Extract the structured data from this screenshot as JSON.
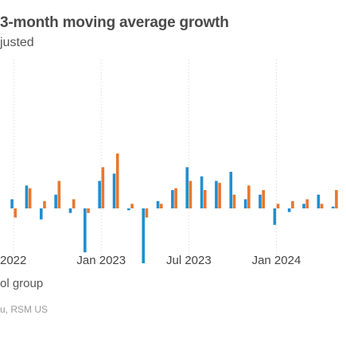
{
  "title": "3-month moving average growth",
  "subtitle": "justed",
  "legend_text": "ol group",
  "source_text": "u, RSM US",
  "colors": {
    "series_a": "#1f8fd0",
    "series_b": "#e8772e",
    "grid": "#d4d4d4",
    "baseline": "#cfcfcf"
  },
  "chart_data": {
    "type": "bar",
    "title": "3-month moving average growth",
    "xlabel": "",
    "ylabel": "",
    "ylim": [
      -1.0,
      1.0
    ],
    "x_ticks": [
      "2022",
      "Jan 2023",
      "Jul 2023",
      "Jan 2024"
    ],
    "x_tick_positions": [
      "2022-07",
      "2023-01",
      "2023-07",
      "2024-01"
    ],
    "grid": "vertical dotted",
    "categories": [
      "2022-07",
      "2022-08",
      "2022-09",
      "2022-10",
      "2022-11",
      "2022-12",
      "2023-01",
      "2023-02",
      "2023-03",
      "2023-04",
      "2023-05",
      "2023-06",
      "2023-07",
      "2023-08",
      "2023-09",
      "2023-10",
      "2023-11",
      "2023-12",
      "2024-01",
      "2024-02",
      "2024-03",
      "2024-04",
      "2024-05"
    ],
    "series": [
      {
        "color": "#1f8fd0",
        "values": [
          0.1,
          0.25,
          -0.12,
          0.15,
          -0.05,
          -0.48,
          0.3,
          0.38,
          -0.02,
          -0.6,
          0.08,
          0.2,
          0.45,
          0.35,
          0.3,
          0.4,
          0.1,
          0.15,
          -0.18,
          -0.04,
          0.05,
          0.15,
          0.02
        ]
      },
      {
        "color": "#e8772e",
        "values": [
          -0.1,
          0.22,
          0.08,
          0.3,
          0.1,
          -0.05,
          0.45,
          0.6,
          0.05,
          -0.1,
          0.05,
          0.22,
          0.3,
          0.2,
          0.28,
          0.15,
          0.25,
          0.2,
          0.05,
          0.08,
          0.1,
          0.05,
          0.2
        ]
      }
    ]
  }
}
